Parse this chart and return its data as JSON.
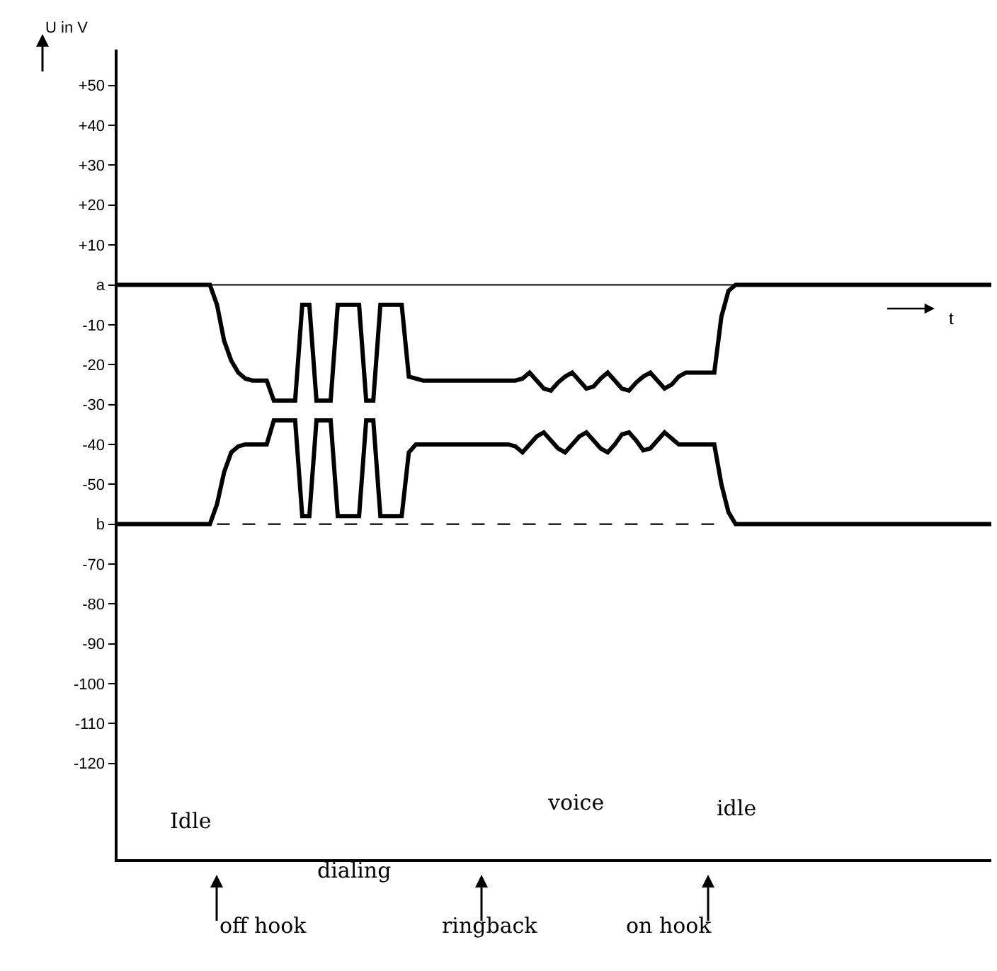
{
  "chart_data": {
    "type": "line",
    "ylabel": "U in V",
    "xlabel": "t",
    "categories": [
      null,
      null,
      null,
      null,
      null,
      null,
      null,
      null,
      null,
      null,
      null,
      null,
      null,
      null,
      null,
      null,
      null,
      null,
      null,
      null,
      null,
      null,
      null,
      null,
      null,
      null,
      null,
      null,
      null,
      null,
      null,
      null,
      null,
      null,
      null,
      null,
      null,
      null,
      null,
      null,
      null,
      null,
      null,
      null,
      null,
      null,
      null,
      null,
      null,
      null,
      null,
      null,
      null,
      null,
      null,
      null,
      null,
      null,
      null,
      null,
      null,
      null,
      null,
      null,
      null,
      null,
      null,
      null,
      null,
      null,
      null,
      null,
      null,
      null,
      null,
      null,
      null,
      null,
      null,
      null,
      null,
      null,
      null,
      null,
      null,
      null,
      null,
      null,
      null,
      null,
      null,
      null,
      null,
      null,
      null,
      null,
      null,
      null,
      null,
      null,
      null,
      null,
      null,
      null,
      null,
      null,
      null,
      null,
      null,
      null,
      null,
      null,
      null,
      null,
      null,
      null,
      null,
      null,
      null,
      null,
      null,
      null,
      null,
      null
    ],
    "series": [
      {
        "color": "#000000",
        "values": [
          0,
          0,
          0,
          0,
          0,
          0,
          0,
          0,
          0,
          0,
          0,
          0,
          0,
          0,
          -5,
          -14,
          -19,
          -22,
          -23.5,
          -24,
          -24,
          -24,
          -29,
          -29,
          -29,
          -29,
          -5,
          -5,
          -29,
          -29,
          -29,
          -5,
          -5,
          -5,
          -5,
          -29,
          -29,
          -5,
          -5,
          -5,
          -5,
          -23,
          -23.5,
          -24,
          -24,
          -24,
          -24,
          -24,
          -24,
          -24,
          -24,
          -24,
          -24,
          -24,
          -24,
          -24,
          -24,
          -23.5,
          -22,
          -24,
          -26,
          -26.5,
          -24.5,
          -23,
          -22,
          -24,
          -26,
          -25.5,
          -23.5,
          -22,
          -24,
          -26,
          -26.5,
          -24.5,
          -23,
          -22,
          -24,
          -26,
          -25,
          -23,
          -22,
          -22,
          -22,
          -22,
          -22,
          -8,
          -1.5,
          0,
          0,
          0,
          0,
          0,
          0,
          0,
          0,
          0,
          0,
          0,
          0,
          0,
          0,
          0,
          0,
          0,
          0,
          0,
          0,
          0,
          0,
          0,
          0,
          0,
          0,
          0,
          0,
          0,
          0,
          0,
          0,
          0,
          0,
          0,
          0,
          0
        ]
      },
      {
        "color": "#000000",
        "values": [
          -60,
          -60,
          -60,
          -60,
          -60,
          -60,
          -60,
          -60,
          -60,
          -60,
          -60,
          -60,
          -60,
          -60,
          -55,
          -47,
          -42,
          -40.5,
          -40,
          -40,
          -40,
          -40,
          -34,
          -34,
          -34,
          -34,
          -58,
          -58,
          -34,
          -34,
          -34,
          -58,
          -58,
          -58,
          -58,
          -34,
          -34,
          -58,
          -58,
          -58,
          -58,
          -42,
          -40,
          -40,
          -40,
          -40,
          -40,
          -40,
          -40,
          -40,
          -40,
          -40,
          -40,
          -40,
          -40,
          -40,
          -40.5,
          -42,
          -40,
          -38,
          -37,
          -39,
          -41,
          -42,
          -40,
          -38,
          -37,
          -39,
          -41,
          -42,
          -40,
          -37.5,
          -37,
          -39,
          -41.5,
          -41,
          -39,
          -37,
          -38.5,
          -40,
          -40,
          -40,
          -40,
          -40,
          -40,
          -50,
          -57,
          -60,
          -60,
          -60,
          -60,
          -60,
          -60,
          -60,
          -60,
          -60,
          -60,
          -60,
          -60,
          -60,
          -60,
          -60,
          -60,
          -60,
          -60,
          -60,
          -60,
          -60,
          -60,
          -60,
          -60,
          -60,
          -60,
          -60,
          -60,
          -60,
          -60,
          -60,
          -60,
          -60,
          -60,
          -60,
          -60,
          -60
        ]
      },
      {
        "color": "#000000",
        "line_style": "dashed",
        "values": [
          null,
          null,
          null,
          null,
          null,
          null,
          null,
          null,
          null,
          null,
          null,
          null,
          null,
          null,
          -60,
          -60,
          -60,
          -60,
          -60,
          -60,
          -60,
          -60,
          -60,
          -60,
          -60,
          -60,
          -60,
          -60,
          -60,
          -60,
          -60,
          -60,
          -60,
          -60,
          -60,
          -60,
          -60,
          -60,
          -60,
          -60,
          -60,
          -60,
          -60,
          -60,
          -60,
          -60,
          -60,
          -60,
          -60,
          -60,
          -60,
          -60,
          -60,
          -60,
          -60,
          -60,
          -60,
          -60,
          -60,
          -60,
          -60,
          -60,
          -60,
          -60,
          -60,
          -60,
          -60,
          -60,
          -60,
          -60,
          -60,
          -60,
          -60,
          -60,
          -60,
          -60,
          -60,
          -60,
          -60,
          -60,
          -60,
          -60,
          -60,
          -60,
          -60,
          null,
          null,
          null,
          null,
          null,
          null,
          null,
          null,
          null,
          null,
          null,
          null,
          null,
          null,
          null,
          null,
          null,
          null,
          null,
          null,
          null,
          null,
          null,
          null,
          null,
          null,
          null,
          null,
          null,
          null,
          null,
          null,
          null,
          null,
          null,
          null,
          null,
          null,
          null
        ]
      }
    ],
    "ylim": [
      -144,
      59
    ],
    "yticks": [
      {
        "value": 50,
        "label": "+50"
      },
      {
        "value": 40,
        "label": "+40"
      },
      {
        "value": 30,
        "label": "+30"
      },
      {
        "value": 20,
        "label": "+20"
      },
      {
        "value": 10,
        "label": "+10"
      },
      {
        "value": 0,
        "label": "a"
      },
      -10,
      -20,
      -30,
      -40,
      -50,
      {
        "value": -60,
        "label": "b"
      },
      -70,
      -80,
      -90,
      -100,
      -110,
      -120
    ],
    "ref_lines": [
      {
        "axis": "y",
        "value": 0,
        "color": "#000000"
      }
    ],
    "tick_labels": "y",
    "marker": "none",
    "annotations": [
      "Idle",
      "dialing",
      "voice",
      "idle",
      "off hook",
      "ringback",
      "on hook"
    ]
  }
}
